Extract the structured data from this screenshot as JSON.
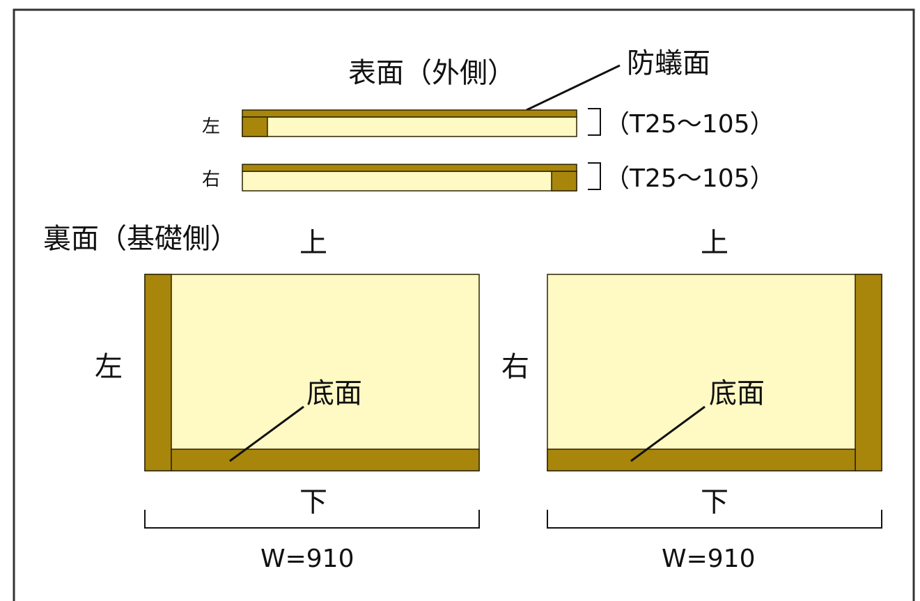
{
  "colors": {
    "fill_light": "#FFF9C4",
    "fill_dark": "#A8860C",
    "stroke": "#2b2200",
    "frame": "#333333"
  },
  "top": {
    "surface_label": "表面（外側）",
    "antitermite_label": "防蟻面",
    "rows": [
      {
        "side_label": "左",
        "thickness_label": "（T25～105）"
      },
      {
        "side_label": "右",
        "thickness_label": "（T25～105）"
      }
    ]
  },
  "bottom": {
    "back_label": "裏面（基礎側）",
    "panels": [
      {
        "top_label": "上",
        "side_label": "左",
        "base_label": "底面",
        "bottom_label": "下",
        "width_label": "W=910"
      },
      {
        "top_label": "上",
        "side_label": "右",
        "base_label": "底面",
        "bottom_label": "下",
        "width_label": "W=910"
      }
    ]
  }
}
